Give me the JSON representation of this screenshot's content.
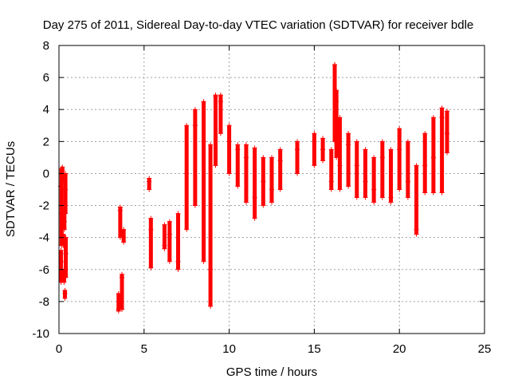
{
  "chart_data": {
    "type": "scatter",
    "title": "Day 275 of 2011, Sidereal Day-to-day VTEC variation (SDTVAR) for receiver bdle",
    "xlabel": "GPS time / hours",
    "ylabel": "SDTVAR / TECUs",
    "xlim": [
      0,
      25
    ],
    "ylim": [
      -10,
      8
    ],
    "x_ticks": [
      0,
      5,
      10,
      15,
      20,
      25
    ],
    "y_ticks": [
      -10,
      -8,
      -6,
      -4,
      -2,
      0,
      2,
      4,
      6,
      8
    ],
    "x_tick_labels": [
      "0",
      "5",
      "10",
      "15",
      "20",
      "25"
    ],
    "y_tick_labels": [
      "-10",
      "-8",
      "-6",
      "-4",
      "-2",
      "0",
      "2",
      "4",
      "6",
      "8"
    ],
    "grid": true,
    "marker": "plus",
    "series": [
      {
        "name": "SDTVAR",
        "color": "#ff0000",
        "x": [
          0.1,
          0.12,
          0.15,
          0.2,
          0.25,
          0.3,
          0.32,
          0.35,
          0.38,
          0.4,
          3.5,
          3.6,
          3.7,
          3.8,
          5.3,
          5.4,
          6.2,
          6.5,
          7.0,
          7.5,
          8.0,
          8.5,
          8.9,
          9.2,
          9.5,
          10.0,
          10.5,
          11.0,
          11.5,
          12.0,
          12.5,
          13.0,
          14.0,
          15.0,
          15.5,
          16.0,
          16.2,
          16.3,
          16.5,
          17.0,
          17.5,
          18.0,
          18.5,
          19.0,
          19.5,
          20.0,
          20.5,
          21.0,
          21.5,
          22.0,
          22.5,
          22.8
        ],
        "y": [
          -0.8,
          -5.5,
          -2.5,
          0.2,
          -4.3,
          -6.5,
          -3.0,
          -7.5,
          -1.0,
          -5.0,
          -8.5,
          -2.3,
          -6.5,
          -4.0,
          -0.5,
          -3.5,
          -4.5,
          -3.8,
          -5.5,
          0.0,
          3.0,
          2.0,
          -6.0,
          4.8,
          4.5,
          2.0,
          1.5,
          1.0,
          -1.5,
          -0.5,
          -1.0,
          0.8,
          1.5,
          2.0,
          1.5,
          -0.5,
          6.8,
          4.5,
          0.5,
          1.8,
          0.5,
          -0.5,
          -1.0,
          1.0,
          -1.5,
          1.5,
          -0.5,
          -3.5,
          0.5,
          1.0,
          3.5,
          2.5
        ],
        "y_low": [
          -0.8,
          -6.8,
          -4.5,
          -0.5,
          -4.5,
          -6.8,
          -3.5,
          -7.8,
          -2.5,
          -6.5,
          -8.6,
          -4.0,
          -8.5,
          -4.3,
          -1.0,
          -5.9,
          -4.7,
          -5.5,
          -6.0,
          -3.5,
          -2.0,
          -5.5,
          -8.3,
          0.5,
          2.5,
          0.0,
          -0.8,
          -1.8,
          -2.8,
          -2.0,
          -1.8,
          -1.0,
          0.0,
          0.5,
          0.8,
          -1.0,
          2.0,
          1.0,
          -1.0,
          -0.8,
          -1.5,
          -1.5,
          -1.8,
          -1.5,
          -1.8,
          -1.0,
          -1.5,
          -3.8,
          -1.2,
          -1.2,
          -1.2,
          1.3
        ],
        "y_high": [
          -0.8,
          -4.8,
          0.3,
          0.4,
          -3.8,
          -6.0,
          -2.2,
          -7.3,
          0.0,
          -4.0,
          -7.5,
          -2.1,
          -6.3,
          -3.5,
          -0.3,
          -2.8,
          -3.2,
          -3.0,
          -2.5,
          3.0,
          4.0,
          4.5,
          1.8,
          4.9,
          4.9,
          3.0,
          1.8,
          1.8,
          1.6,
          1.0,
          1.0,
          1.5,
          2.0,
          2.5,
          2.2,
          1.5,
          6.8,
          5.2,
          3.5,
          2.5,
          2.0,
          1.5,
          1.0,
          2.0,
          1.5,
          2.8,
          2.0,
          0.5,
          2.5,
          3.5,
          4.1,
          3.9
        ]
      }
    ]
  }
}
